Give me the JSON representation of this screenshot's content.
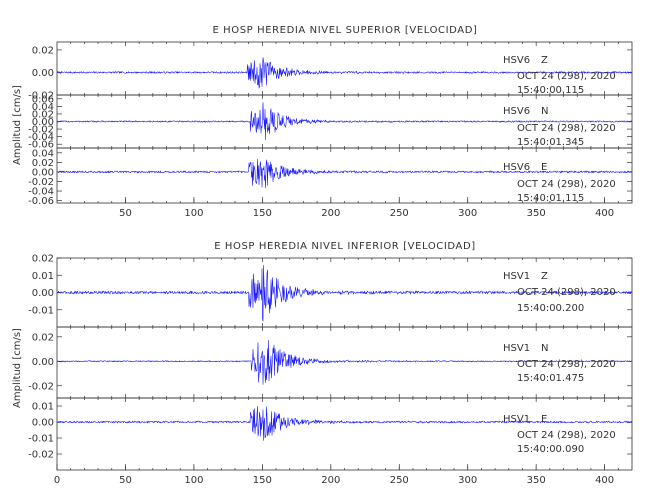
{
  "chart_data": [
    {
      "type": "line",
      "title": "E HOSP HEREDIA NIVEL SUPERIOR [VELOCIDAD]",
      "ylabel": "Amplitud [cm/s]",
      "xlabel": "",
      "xlim": [
        0,
        420
      ],
      "x_ticks": [
        50,
        100,
        150,
        200,
        250,
        300,
        350,
        400
      ],
      "x_tick_labels": [
        "50",
        "100",
        "150",
        "200",
        "250",
        "300",
        "350",
        "400"
      ],
      "series_color": "#1a1aff",
      "traces": [
        {
          "station": "HSV6",
          "component": "Z",
          "date": "OCT 24 (298), 2020",
          "time": "15:40:00.115",
          "ylim": [
            -0.02,
            0.027
          ],
          "yticks": [
            0.02,
            0.0,
            -0.02
          ],
          "ytick_labels": [
            "0.02",
            "0.00",
            "-0.02"
          ],
          "onset": 139,
          "peak_amplitude": 0.015,
          "noise_amplitude": 0.0008
        },
        {
          "station": "HSV6",
          "component": "N",
          "date": "OCT 24 (298), 2020",
          "time": "15:40:01.345",
          "ylim": [
            -0.07,
            0.07
          ],
          "yticks": [
            0.06,
            0.04,
            0.02,
            0.0,
            -0.02,
            -0.04,
            -0.06
          ],
          "ytick_labels": [
            "0.06",
            "0.04",
            "0.02",
            "0.00",
            "-0.02",
            "-0.04",
            "-0.06"
          ],
          "onset": 141,
          "peak_amplitude": 0.05,
          "noise_amplitude": 0.002
        },
        {
          "station": "HSV6",
          "component": "E",
          "date": "OCT 24 (298), 2020",
          "time": "15:40:01.115",
          "ylim": [
            -0.065,
            0.05
          ],
          "yticks": [
            0.04,
            0.02,
            0.0,
            -0.02,
            -0.04,
            -0.06
          ],
          "ytick_labels": [
            "0.04",
            "0.02",
            "0.00",
            "-0.02",
            "-0.04",
            "-0.06"
          ],
          "onset": 140,
          "peak_amplitude": 0.04,
          "noise_amplitude": 0.002
        }
      ]
    },
    {
      "type": "line",
      "title": "E HOSP HEREDIA NIVEL INFERIOR [VELOCIDAD]",
      "ylabel": "Amplitud [cm/s]",
      "xlabel": "",
      "xlim": [
        0,
        420
      ],
      "x_ticks": [
        0,
        50,
        100,
        150,
        200,
        250,
        300,
        350,
        400
      ],
      "x_tick_labels": [
        "0",
        "50",
        "100",
        "150",
        "200",
        "250",
        "300",
        "350",
        "400"
      ],
      "series_color": "#1a1aff",
      "traces": [
        {
          "station": "HSV1",
          "component": "Z",
          "date": "OCT 24 (298), 2020",
          "time": "15:40:00.200",
          "ylim": [
            -0.02,
            0.02
          ],
          "yticks": [
            0.02,
            0.01,
            0.0,
            -0.01
          ],
          "ytick_labels": [
            "0.02",
            "0.01",
            "0.00",
            "-0.01"
          ],
          "onset": 140,
          "peak_amplitude": 0.018,
          "noise_amplitude": 0.0008
        },
        {
          "station": "HSV1",
          "component": "N",
          "date": "OCT 24 (298), 2020",
          "time": "15:40:01.475",
          "ylim": [
            -0.03,
            0.028
          ],
          "yticks": [
            0.02,
            0.0,
            -0.02
          ],
          "ytick_labels": [
            "0.02",
            "0.00",
            "-0.02"
          ],
          "onset": 142,
          "peak_amplitude": 0.022,
          "noise_amplitude": 0.0005
        },
        {
          "station": "HSV1",
          "component": "E",
          "date": "OCT 24 (298), 2020",
          "time": "15:40:00.090",
          "ylim": [
            -0.03,
            0.015
          ],
          "yticks": [
            0.01,
            0.0,
            -0.01,
            -0.02
          ],
          "ytick_labels": [
            "0.01",
            "0.00",
            "-0.01",
            "-0.02"
          ],
          "onset": 141,
          "peak_amplitude": 0.012,
          "noise_amplitude": 0.0006
        }
      ]
    }
  ]
}
